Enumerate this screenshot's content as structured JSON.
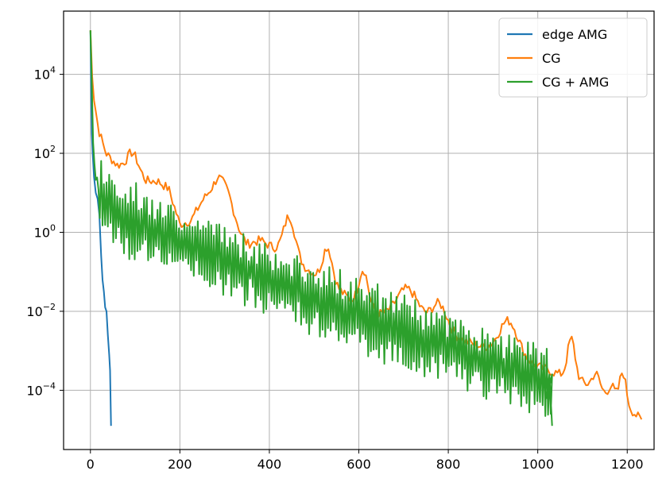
{
  "chart_data": {
    "type": "line",
    "title": "",
    "xlabel": "",
    "ylabel": "",
    "xlim": [
      -60,
      1260
    ],
    "ylim_log10": [
      -5.5,
      5.6
    ],
    "yscale": "log",
    "grid": true,
    "legend_position": "top-right",
    "x_ticks": [
      {
        "value": 0,
        "label": "0"
      },
      {
        "value": 200,
        "label": "200"
      },
      {
        "value": 400,
        "label": "400"
      },
      {
        "value": 600,
        "label": "600"
      },
      {
        "value": 800,
        "label": "800"
      },
      {
        "value": 1000,
        "label": "1000"
      },
      {
        "value": 1200,
        "label": "1200"
      }
    ],
    "y_ticks": [
      {
        "exp": 4,
        "base": "10",
        "sup": "4"
      },
      {
        "exp": 2,
        "base": "10",
        "sup": "2"
      },
      {
        "exp": 0,
        "base": "10",
        "sup": "0"
      },
      {
        "exp": -2,
        "base": "10",
        "sup": "−2"
      },
      {
        "exp": -4,
        "base": "10",
        "sup": "−4"
      }
    ],
    "series": [
      {
        "name": "edge AMG",
        "color": "#1f77b4",
        "kind": "explicit",
        "points": [
          [
            0,
            5.1
          ],
          [
            1,
            4.3
          ],
          [
            2,
            3.3
          ],
          [
            3,
            2.5
          ],
          [
            5,
            2.0
          ],
          [
            8,
            1.4
          ],
          [
            12,
            1.0
          ],
          [
            16,
            0.85
          ],
          [
            20,
            0.45
          ],
          [
            24,
            -0.6
          ],
          [
            27,
            -1.2
          ],
          [
            30,
            -1.5
          ],
          [
            33,
            -1.9
          ],
          [
            36,
            -2.0
          ],
          [
            39,
            -2.6
          ],
          [
            42,
            -3.1
          ],
          [
            44,
            -3.5
          ],
          [
            46,
            -4.9
          ]
        ]
      },
      {
        "name": "CG",
        "color": "#ff7f0e",
        "kind": "generated",
        "start": 0,
        "end": 1235,
        "step": 4,
        "trend": [
          [
            0,
            5.1
          ],
          [
            3,
            4.2
          ],
          [
            8,
            3.4
          ],
          [
            18,
            2.6
          ],
          [
            35,
            2.0
          ],
          [
            60,
            1.7
          ],
          [
            90,
            1.75
          ],
          [
            105,
            1.6
          ],
          [
            125,
            1.3
          ],
          [
            150,
            1.3
          ],
          [
            175,
            1.1
          ],
          [
            200,
            0.2
          ],
          [
            225,
            0.3
          ],
          [
            250,
            0.8
          ],
          [
            285,
            1.3
          ],
          [
            310,
            0.8
          ],
          [
            335,
            0.0
          ],
          [
            350,
            -0.3
          ],
          [
            380,
            -0.2
          ],
          [
            410,
            -0.4
          ],
          [
            445,
            -0.6
          ],
          [
            480,
            -0.9
          ],
          [
            520,
            -1.2
          ],
          [
            560,
            -1.5
          ],
          [
            600,
            -1.9
          ],
          [
            650,
            -2.1
          ],
          [
            700,
            -2.2
          ],
          [
            750,
            -2.4
          ],
          [
            800,
            -2.6
          ],
          [
            850,
            -2.8
          ],
          [
            900,
            -3.0
          ],
          [
            950,
            -3.2
          ],
          [
            1000,
            -3.4
          ],
          [
            1050,
            -3.6
          ],
          [
            1100,
            -3.8
          ],
          [
            1150,
            -4.1
          ],
          [
            1200,
            -4.4
          ],
          [
            1235,
            -4.8
          ]
        ],
        "bumps": [
          [
            95,
            0.3,
            15
          ],
          [
            300,
            0.2,
            20
          ],
          [
            445,
            1.0,
            18
          ],
          [
            530,
            0.9,
            15
          ],
          [
            610,
            1.0,
            15
          ],
          [
            710,
            0.8,
            35
          ],
          [
            780,
            0.7,
            25
          ],
          [
            935,
            0.9,
            30
          ],
          [
            1075,
            1.0,
            12
          ],
          [
            1130,
            0.4,
            12
          ],
          [
            1165,
            0.3,
            10
          ],
          [
            1190,
            0.8,
            10
          ]
        ],
        "noise_amp": 0.12,
        "noise_seed": 7
      },
      {
        "name": "CG + AMG",
        "color": "#2ca02c",
        "kind": "generated",
        "start": 0,
        "end": 1032,
        "step": 3,
        "trend": [
          [
            0,
            5.2
          ],
          [
            2,
            4.3
          ],
          [
            4,
            3.0
          ],
          [
            6,
            2.3
          ],
          [
            10,
            1.5
          ],
          [
            20,
            1.0
          ],
          [
            40,
            0.7
          ],
          [
            80,
            0.35
          ],
          [
            120,
            0.15
          ],
          [
            160,
            0.0
          ],
          [
            200,
            -0.2
          ],
          [
            250,
            -0.45
          ],
          [
            300,
            -0.7
          ],
          [
            350,
            -0.95
          ],
          [
            400,
            -1.2
          ],
          [
            450,
            -1.45
          ],
          [
            500,
            -1.65
          ],
          [
            550,
            -1.9
          ],
          [
            600,
            -2.1
          ],
          [
            650,
            -2.35
          ],
          [
            700,
            -2.55
          ],
          [
            750,
            -2.75
          ],
          [
            800,
            -2.95
          ],
          [
            850,
            -3.15
          ],
          [
            900,
            -3.35
          ],
          [
            950,
            -3.55
          ],
          [
            1000,
            -3.75
          ],
          [
            1032,
            -3.9
          ]
        ],
        "bumps": [],
        "osc_amp": 0.6,
        "osc_from": 20,
        "noise_amp": 0.15,
        "noise_seed": 3,
        "tail": [
          [
            1020,
            -4.2
          ],
          [
            1026,
            -3.6
          ],
          [
            1032,
            -4.9
          ]
        ]
      }
    ]
  }
}
